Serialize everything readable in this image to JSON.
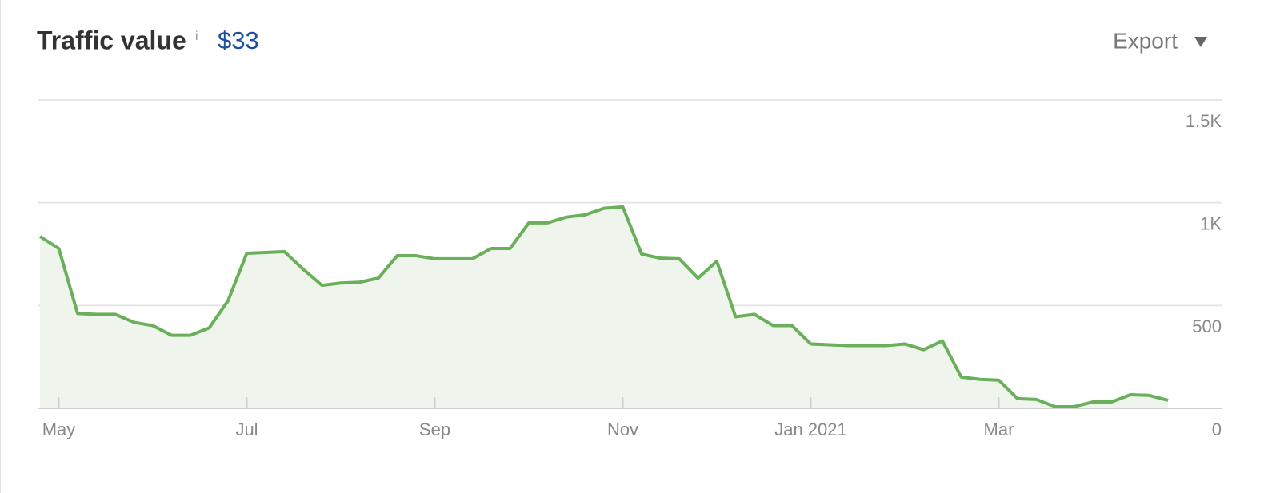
{
  "chart_data": {
    "type": "line",
    "title": "Traffic value",
    "info_icon": "i",
    "header_value": "$33",
    "export_label": "Export",
    "categories": [
      null,
      "May",
      null,
      null,
      null,
      null,
      null,
      null,
      null,
      null,
      null,
      "Jul",
      null,
      null,
      null,
      null,
      null,
      null,
      null,
      null,
      null,
      "Sep",
      null,
      null,
      null,
      null,
      null,
      null,
      null,
      null,
      null,
      "Nov",
      null,
      null,
      null,
      null,
      null,
      null,
      null,
      null,
      null,
      "Jan 2021",
      null,
      null,
      null,
      null,
      null,
      null,
      null,
      null,
      null,
      "Mar",
      null,
      null,
      null,
      null,
      null,
      null,
      null,
      null,
      null
    ],
    "values": [
      836,
      777,
      461,
      457,
      457,
      418,
      402,
      355,
      355,
      391,
      523,
      754,
      758,
      762,
      676,
      598,
      609,
      613,
      633,
      742,
      742,
      727,
      727,
      727,
      777,
      777,
      902,
      902,
      930,
      941,
      973,
      980,
      750,
      730,
      727,
      633,
      715,
      445,
      457,
      402,
      402,
      313,
      309,
      305,
      305,
      305,
      313,
      285,
      328,
      152,
      141,
      137,
      47,
      43,
      8,
      8,
      31,
      31,
      66,
      63,
      39
    ],
    "color": "#6aaf5a",
    "area_color": "#eff5ec",
    "ylim": [
      0,
      1500
    ],
    "yticks": [
      0,
      500,
      {
        "value": 1000,
        "label": "1K"
      },
      {
        "value": 1500,
        "label": "1.5K"
      }
    ],
    "grid": true
  }
}
